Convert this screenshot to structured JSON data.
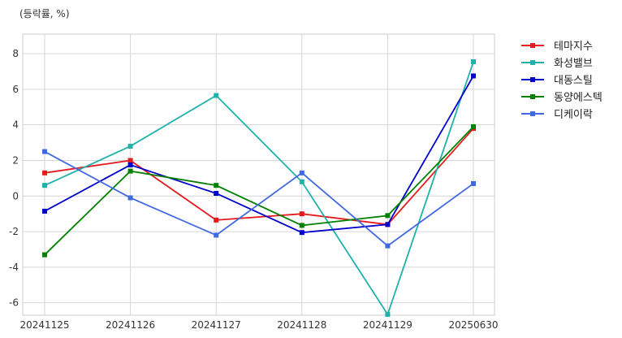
{
  "chart_data": {
    "type": "line",
    "unit_label": "(등락률, %)",
    "categories": [
      "20241125",
      "20241126",
      "20241127",
      "20241128",
      "20241129",
      "20250630"
    ],
    "ylim": [
      -6.7,
      9.1
    ],
    "yticks": [
      -6,
      -4,
      -2,
      0,
      2,
      4,
      6,
      8
    ],
    "grid": true,
    "legend_position": "right-top",
    "series": [
      {
        "name": "테마지수",
        "color": "#e41a1c",
        "values": [
          1.3,
          2.0,
          -1.35,
          -1.0,
          -1.6,
          3.8
        ]
      },
      {
        "name": "화성밸브",
        "color": "#20b2aa",
        "values": [
          0.6,
          2.8,
          5.65,
          0.8,
          -6.65,
          7.55
        ]
      },
      {
        "name": "대동스틸",
        "color": "#0000cd",
        "values": [
          -0.85,
          1.75,
          0.15,
          -2.05,
          -1.6,
          6.75
        ]
      },
      {
        "name": "동양에스텍",
        "color": "#008000",
        "values": [
          -3.3,
          1.4,
          0.6,
          -1.65,
          -1.1,
          3.9
        ]
      },
      {
        "name": "디케이락",
        "color": "#4169e1",
        "values": [
          2.5,
          -0.1,
          -2.2,
          1.3,
          -2.8,
          0.7
        ]
      }
    ]
  }
}
